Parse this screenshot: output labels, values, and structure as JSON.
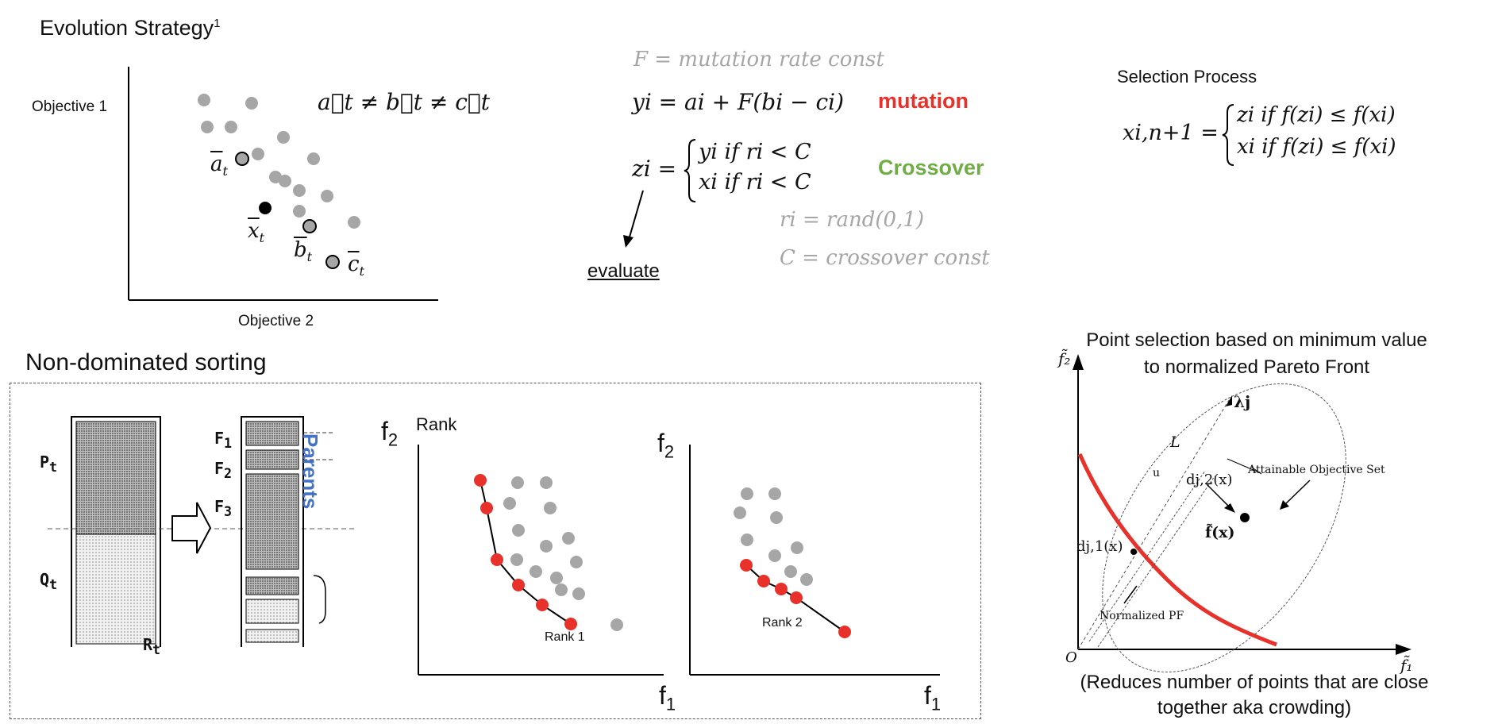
{
  "evolution_strategy": {
    "title": "Evolution Strategy",
    "footnote_marker": "1",
    "y_axis_label": "Objective 1",
    "x_axis_label": "Objective 2",
    "inequality": "a⃗t ≠ b⃗t ≠ c⃗t",
    "label_a": "a",
    "label_x": "x",
    "label_b": "b",
    "label_c": "c",
    "subscript_t": "t",
    "colors": {
      "population": "#a6a6a6",
      "selected": "#a6a6a6",
      "target": "#000000"
    }
  },
  "equations": {
    "F_def": "F = mutation rate const",
    "mutation_eq": "yi = ai + F(bi − ci)",
    "mutation_label": "mutation",
    "crossover_lhs": "zi =",
    "crossover_case1": "yi   if   ri < C",
    "crossover_case2": "xi   if   ri < C",
    "crossover_label": "Crossover",
    "r_def": "ri = rand(0,1)",
    "C_def": "C = crossover const",
    "evaluate_label": "evaluate",
    "colors": {
      "mutation": "#e8312a",
      "crossover": "#70ad47",
      "definition": "#a6a6a6"
    }
  },
  "selection": {
    "title": "Selection Process",
    "lhs": "xi,n+1 =",
    "case1": "zi   if   f(zi) ≤ f(xi)",
    "case2": "xi   if   f(zi) ≤ f(xi)"
  },
  "nondominated": {
    "title": "Non-dominated sorting",
    "P_label": "P",
    "Q_label": "Q",
    "R_label": "R",
    "t_sub": "t",
    "F1_label": "F",
    "F2_label": "F",
    "F3_label": "F",
    "F1_sub": "1",
    "F2_sub": "2",
    "F3_sub": "3",
    "parents_label": "Parents",
    "rank_label": "Rank",
    "plot1": {
      "f2": "f",
      "f2_sub": "2",
      "f1": "f",
      "f1_sub": "1",
      "rank": "Rank 1"
    },
    "plot2": {
      "f2": "f",
      "f2_sub": "2",
      "f1": "f",
      "f1_sub": "1",
      "rank": "Rank 2"
    },
    "colors": {
      "front": "#e8312a",
      "other": "#a6a6a6",
      "parents": "#4472c4"
    }
  },
  "point_selection": {
    "title_line1": "Point selection based on minimum value",
    "title_line2": "to normalized Pareto Front",
    "y_axis": "f̃₂",
    "x_axis": "f̃₁",
    "origin": "O",
    "lambda_label": "λj",
    "L_label": "L",
    "u_label": "u",
    "dj2_label": "dj,2(x)",
    "dj1_label": "dj,1(x)",
    "fx_label": "f̃(x)",
    "attainable_label": "Attainable Objective Set",
    "normalized_pf_label": "Normalized PF",
    "caption_line1": "(Reduces number of points that are close",
    "caption_line2": "together aka crowding)",
    "colors": {
      "pf": "#e8312a"
    }
  }
}
